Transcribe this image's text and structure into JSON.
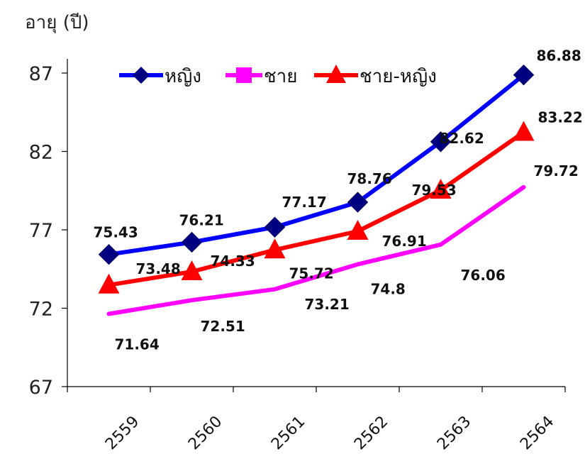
{
  "chart_data": {
    "type": "line",
    "ylabel": "อายุ (ปี)",
    "ylim": [
      67,
      87
    ],
    "yticks": [
      "67",
      "72",
      "77",
      "82",
      "87"
    ],
    "categories": [
      "2559",
      "2560",
      "2561",
      "2562",
      "2563",
      "2564"
    ],
    "legend_position": "top",
    "grid": false,
    "series": [
      {
        "name": "หญิง",
        "values": [
          75.43,
          76.21,
          77.17,
          78.76,
          82.62,
          86.88
        ],
        "labels": [
          "75.43",
          "76.21",
          "77.17",
          "78.76",
          "82.62",
          "86.88"
        ],
        "color": "#0000ff",
        "marker": "diamond",
        "marker_color": "#000080"
      },
      {
        "name": "ชาย",
        "values": [
          71.64,
          72.51,
          73.21,
          74.8,
          76.06,
          79.72
        ],
        "labels": [
          "71.64",
          "72.51",
          "73.21",
          "74.8",
          "76.06",
          "79.72"
        ],
        "color": "#ff00ff",
        "marker": "none",
        "marker_color": "#ff00ff"
      },
      {
        "name": "ชาย-หญิง",
        "values": [
          73.48,
          74.33,
          75.72,
          76.91,
          79.53,
          83.22
        ],
        "labels": [
          "73.48",
          "74.33",
          "75.72",
          "76.91",
          "79.53",
          "83.22"
        ],
        "color": "#ff0000",
        "marker": "triangle",
        "marker_color": "#ff0000"
      }
    ]
  }
}
